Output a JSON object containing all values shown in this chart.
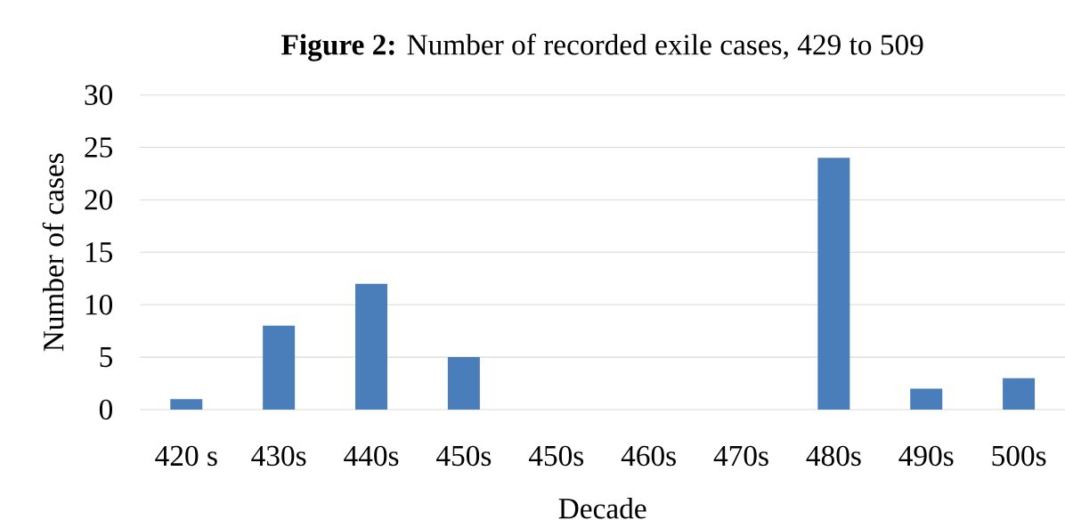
{
  "chart_data": {
    "type": "bar",
    "title": "**Figure 2:** Number of recorded exile cases, 429 to 509",
    "xlabel": "Decade",
    "ylabel": "Number of cases",
    "categories": [
      "420 s",
      "430s",
      "440s",
      "450s",
      "450s",
      "460s",
      "470s",
      "480s",
      "490s",
      "500s"
    ],
    "values": [
      1,
      8,
      12,
      5,
      0,
      0,
      0,
      24,
      2,
      3
    ],
    "color": "#4a7ebb",
    "ylim": [
      0,
      30
    ],
    "yticks": [
      0,
      5,
      10,
      15,
      20,
      25,
      30
    ],
    "grid": "y"
  }
}
